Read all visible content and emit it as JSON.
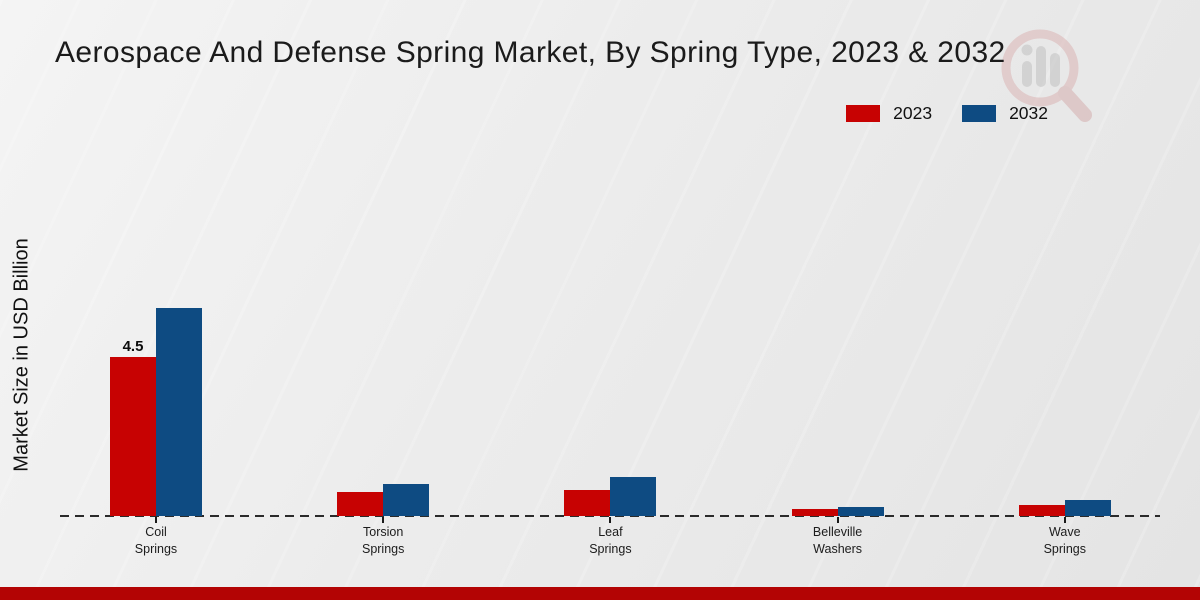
{
  "chart_data": {
    "type": "bar",
    "title": "Aerospace And Defense Spring Market, By Spring Type, 2023 & 2032",
    "ylabel": "Market Size in USD Billion",
    "xlabel": "",
    "categories": [
      "Coil Springs",
      "Torsion Springs",
      "Leaf Springs",
      "Belleville Washers",
      "Wave Springs"
    ],
    "series": [
      {
        "name": "2023",
        "color": "#c70202",
        "values": [
          4.5,
          0.67,
          0.75,
          0.2,
          0.3
        ]
      },
      {
        "name": "2032",
        "color": "#0e4b82",
        "values": [
          5.9,
          0.9,
          1.1,
          0.25,
          0.45
        ]
      }
    ],
    "annotations": [
      {
        "series": "2023",
        "category": "Coil Springs",
        "text": "4.5"
      }
    ],
    "ylim": [
      0,
      6.5
    ],
    "grid": false,
    "legend_position": "top-right",
    "baseline_style": "dashed-zero-line"
  },
  "branding": {
    "watermark_icon": "magnifier-bar-chart-logo-icon",
    "footer_bar_color": "#b30404"
  },
  "colors": {
    "background": "#e9e9e9",
    "baseline": "#2a2a2a",
    "bar_red": "#c70202",
    "bar_blue": "#0e4b82"
  }
}
